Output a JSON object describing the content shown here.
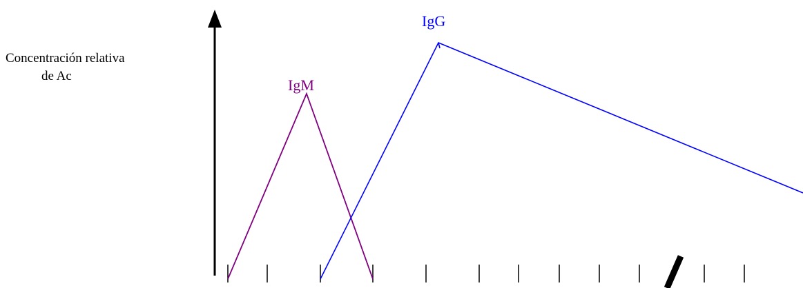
{
  "ylabel": {
    "line1": "Concentración relativa",
    "line2": "de  Ac"
  },
  "series": [
    {
      "name": "IgM",
      "color": "#800080"
    },
    {
      "name": "IgG",
      "color": "#0000ff"
    }
  ],
  "axis_color": "#000000"
}
